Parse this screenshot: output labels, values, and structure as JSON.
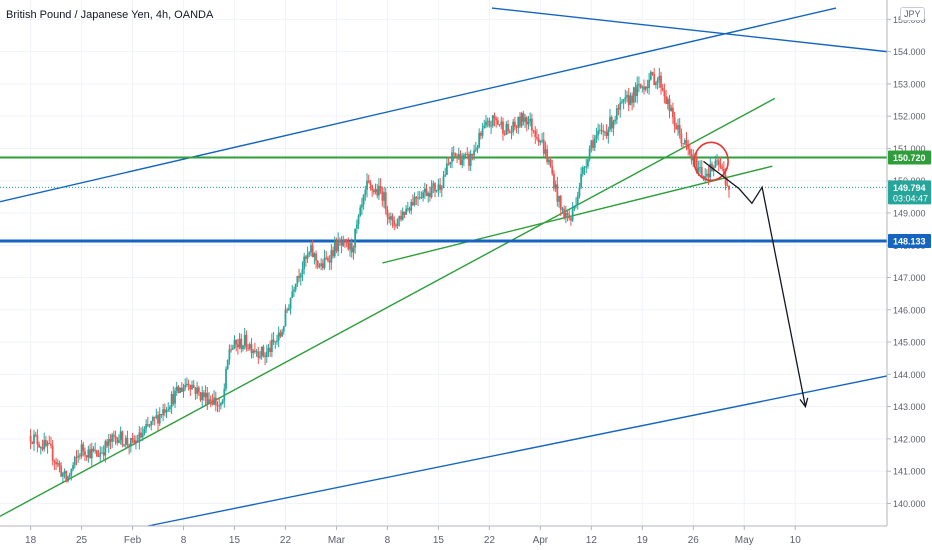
{
  "title": "British Pound / Japanese Yen, 4h, OANDA",
  "currency_badge": "JPY",
  "chart_data": {
    "type": "candlestick",
    "symbol": "GBPJPY",
    "timeframe": "4h",
    "source": "OANDA",
    "y_axis": {
      "ticks": [
        140.0,
        141.0,
        142.0,
        143.0,
        144.0,
        145.0,
        146.0,
        147.0,
        148.0,
        149.0,
        150.0,
        151.0,
        152.0,
        153.0,
        154.0,
        155.0
      ],
      "tick_labels": [
        "140.000",
        "141.000",
        "142.000",
        "143.000",
        "144.000",
        "145.000",
        "146.000",
        "147.000",
        "148.000",
        "149.000",
        "150.000",
        "151.000",
        "152.000",
        "153.000",
        "154.000",
        "155.000"
      ],
      "range": [
        139.3,
        155.6
      ],
      "position": "right"
    },
    "x_axis": {
      "tick_labels": [
        "18",
        "25",
        "Feb",
        "8",
        "15",
        "22",
        "Mar",
        "8",
        "15",
        "22",
        "Apr",
        "12",
        "19",
        "26",
        "May",
        "10"
      ],
      "range_weeks": [
        -0.6,
        16.8
      ]
    },
    "price_labels": [
      {
        "value": 150.72,
        "text": "150.720",
        "color": "#2e9e3a"
      },
      {
        "value": 149.794,
        "text": "149.794",
        "subtext": "03:04:47",
        "color": "#26a69a"
      },
      {
        "value": 148.133,
        "text": "148.133",
        "color": "#1565c0"
      }
    ],
    "horizontal_levels": [
      {
        "value": 150.72,
        "color": "#2e9e3a"
      },
      {
        "value": 148.133,
        "color": "#1565c0"
      }
    ],
    "current_price": 149.794,
    "up_color": "#26a69a",
    "down_color": "#ef5350",
    "close_path": [
      [
        0.0,
        142.1
      ],
      [
        0.4,
        141.6
      ],
      [
        0.7,
        140.7
      ],
      [
        1.0,
        141.7
      ],
      [
        1.3,
        141.5
      ],
      [
        1.7,
        142.1
      ],
      [
        2.0,
        141.8
      ],
      [
        2.4,
        142.5
      ],
      [
        2.8,
        143.3
      ],
      [
        3.1,
        143.8
      ],
      [
        3.3,
        143.4
      ],
      [
        3.6,
        143.2
      ],
      [
        3.75,
        142.9
      ],
      [
        3.9,
        144.8
      ],
      [
        4.2,
        145.0
      ],
      [
        4.6,
        144.6
      ],
      [
        4.9,
        145.2
      ],
      [
        5.2,
        147.0
      ],
      [
        5.5,
        147.8
      ],
      [
        5.7,
        147.3
      ],
      [
        6.0,
        148.0
      ],
      [
        6.3,
        147.9
      ],
      [
        6.6,
        149.8
      ],
      [
        6.9,
        149.6
      ],
      [
        7.1,
        148.6
      ],
      [
        7.3,
        149.0
      ],
      [
        7.6,
        149.6
      ],
      [
        8.0,
        149.8
      ],
      [
        8.3,
        150.8
      ],
      [
        8.6,
        150.6
      ],
      [
        8.9,
        151.6
      ],
      [
        9.1,
        151.9
      ],
      [
        9.4,
        151.5
      ],
      [
        9.7,
        152.0
      ],
      [
        10.0,
        151.3
      ],
      [
        10.2,
        150.4
      ],
      [
        10.4,
        149.1
      ],
      [
        10.6,
        148.8
      ],
      [
        10.8,
        150.1
      ],
      [
        11.0,
        151.2
      ],
      [
        11.3,
        151.6
      ],
      [
        11.6,
        152.3
      ],
      [
        11.9,
        152.8
      ],
      [
        12.2,
        153.2
      ],
      [
        12.35,
        153.1
      ],
      [
        12.6,
        151.9
      ],
      [
        12.8,
        151.2
      ],
      [
        13.0,
        150.6
      ],
      [
        13.2,
        150.2
      ],
      [
        13.5,
        150.5
      ],
      [
        13.7,
        149.79
      ]
    ],
    "trendlines": [
      {
        "color": "#1565c0",
        "points": [
          [
            -0.6,
            149.35
          ],
          [
            15.8,
            155.35
          ]
        ]
      },
      {
        "color": "#1565c0",
        "points": [
          [
            9.05,
            155.35
          ],
          [
            16.8,
            154.0
          ]
        ]
      },
      {
        "color": "#1565c0",
        "points": [
          [
            2.3,
            139.3
          ],
          [
            16.8,
            143.95
          ]
        ]
      },
      {
        "color": "#2e9e3a",
        "points": [
          [
            -0.6,
            139.6
          ],
          [
            14.6,
            152.55
          ]
        ]
      },
      {
        "color": "#2e9e3a",
        "points": [
          [
            6.9,
            147.45
          ],
          [
            14.55,
            150.45
          ]
        ]
      }
    ],
    "projection_path": [
      [
        13.2,
        150.6
      ],
      [
        13.9,
        149.75
      ],
      [
        14.15,
        149.3
      ],
      [
        14.35,
        149.8
      ],
      [
        15.2,
        143.0
      ]
    ],
    "highlight_circle": {
      "x": 13.35,
      "y": 150.6,
      "color": "#e53935"
    }
  }
}
